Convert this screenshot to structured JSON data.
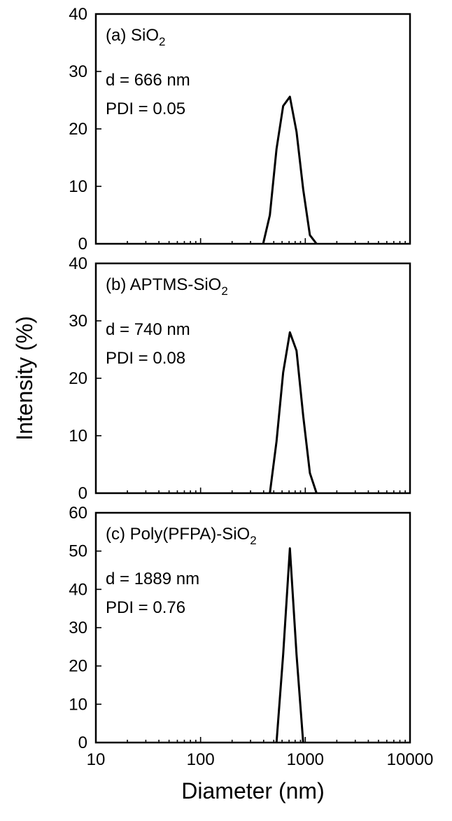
{
  "x_axis": {
    "label": "Diameter (nm)",
    "scale": "log",
    "range": [
      10,
      10000
    ],
    "tick_labels": [
      "10",
      "100",
      "1000",
      "10000"
    ]
  },
  "y_axis": {
    "label": "Intensity (%)"
  },
  "chart_data": [
    {
      "type": "line",
      "panel_label": "(a) SiO",
      "panel_label_sub": "2",
      "annotations": [
        "d = 666 nm",
        "PDI = 0.05"
      ],
      "ylim": [
        0,
        40
      ],
      "y_ticks": [
        0,
        10,
        20,
        30,
        40
      ],
      "x_scale": "log",
      "xlim": [
        10,
        10000
      ],
      "grid": false,
      "series": [
        {
          "x": [
            396,
            459,
            531,
            615,
            712,
            825,
            955,
            1106,
            1281
          ],
          "y": [
            0,
            5.0,
            16.5,
            24.0,
            25.6,
            19.5,
            9.5,
            1.5,
            0
          ]
        }
      ]
    },
    {
      "type": "line",
      "panel_label": "(b) APTMS-SiO",
      "panel_label_sub": "2",
      "annotations": [
        "d = 740 nm",
        "PDI = 0.08"
      ],
      "ylim": [
        0,
        40
      ],
      "y_ticks": [
        0,
        10,
        20,
        30,
        40
      ],
      "x_scale": "log",
      "xlim": [
        10,
        10000
      ],
      "grid": false,
      "series": [
        {
          "x": [
            459,
            531,
            615,
            712,
            825,
            955,
            1106,
            1281
          ],
          "y": [
            0,
            9.0,
            21.0,
            28.0,
            24.8,
            13.5,
            3.5,
            0
          ]
        }
      ]
    },
    {
      "type": "line",
      "panel_label": "(c) Poly(PFPA)-SiO",
      "panel_label_sub": "2",
      "annotations": [
        "d = 1889 nm",
        "PDI = 0.76"
      ],
      "ylim": [
        0,
        60
      ],
      "y_ticks": [
        0,
        10,
        20,
        30,
        40,
        50,
        60
      ],
      "x_scale": "log",
      "xlim": [
        10,
        10000
      ],
      "grid": false,
      "series": [
        {
          "x": [
            531,
            615,
            712,
            825,
            955
          ],
          "y": [
            0,
            23.0,
            50.7,
            23.0,
            0
          ]
        }
      ]
    }
  ]
}
